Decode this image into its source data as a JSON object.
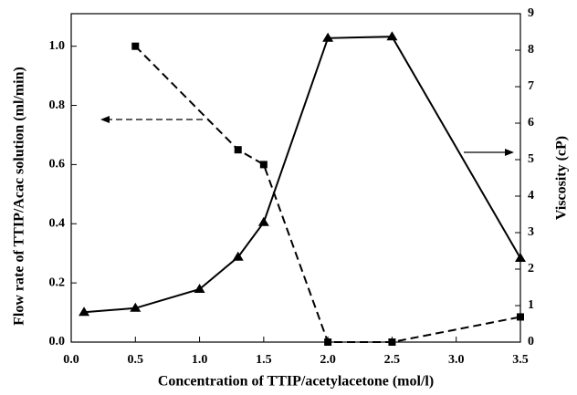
{
  "chart_data": {
    "type": "line",
    "xlabel": "Concentration of TTIP/acetylacetone  (mol/l)",
    "ylabel": "Flow rate of TTIP/Acac solution (ml/min)",
    "y2label": "Viscosity (cP)",
    "xlim": [
      0,
      3.5
    ],
    "xticks": [
      {
        "value": 0,
        "label": "0.0"
      },
      {
        "value": 0.5,
        "label": "0.5"
      },
      {
        "value": 1,
        "label": "1.0"
      },
      {
        "value": 1.5,
        "label": "1.5"
      },
      {
        "value": 2,
        "label": "2.0"
      },
      {
        "value": 2.5,
        "label": "2.5"
      },
      {
        "value": 3,
        "label": "3.0"
      },
      {
        "value": 3.5,
        "label": "3.5"
      }
    ],
    "ylim": [
      0,
      1.11
    ],
    "yticks": [
      {
        "value": 0,
        "label": "0.0"
      },
      {
        "value": 0.2,
        "label": "0.2"
      },
      {
        "value": 0.4,
        "label": "0.4"
      },
      {
        "value": 0.6,
        "label": "0.6"
      },
      {
        "value": 0.8,
        "label": "0.8"
      },
      {
        "value": 1,
        "label": "1.0"
      }
    ],
    "y2lim": [
      0,
      9
    ],
    "y2ticks": [
      0,
      1,
      2,
      3,
      4,
      5,
      6,
      7,
      8,
      9
    ],
    "series": [
      {
        "color": "#000000",
        "marker": "square",
        "linestyle": "dashed",
        "x": [
          0.5,
          1.3,
          1.5,
          2.0,
          2.5,
          3.5
        ],
        "values": [
          1.0,
          0.65,
          0.6,
          0.0,
          0.0,
          0.085
        ]
      },
      {
        "color": "#000000",
        "marker": "triangle",
        "linestyle": "solid",
        "axis": "y2",
        "x": [
          0.1,
          0.5,
          1.0,
          1.3,
          1.5,
          2.0,
          2.5,
          3.5
        ],
        "values": [
          0.82,
          0.93,
          1.45,
          2.33,
          3.28,
          8.33,
          8.37,
          2.3
        ]
      }
    ]
  }
}
